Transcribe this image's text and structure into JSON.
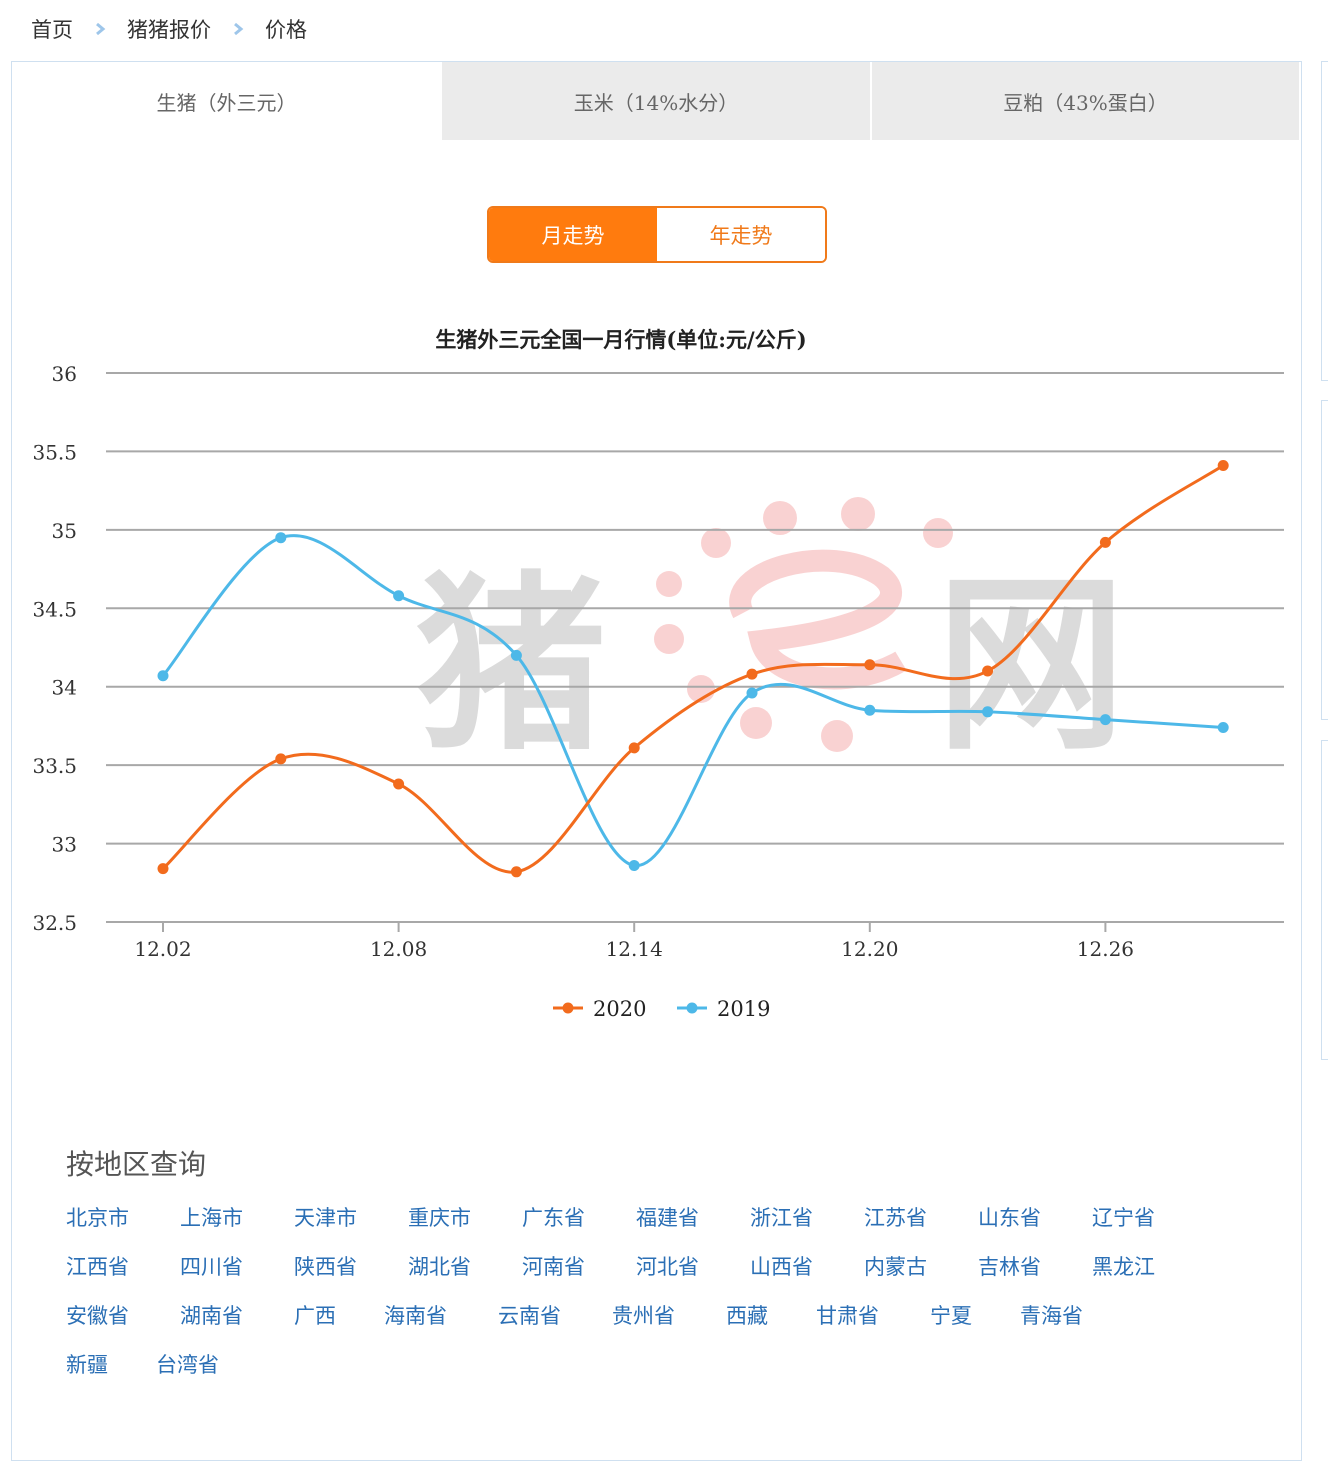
{
  "breadcrumb": {
    "home": "首页",
    "quotes": "猪猪报价",
    "price": "价格"
  },
  "tabs": [
    "生猪（外三元）",
    "玉米（14%水分）",
    "豆粕（43%蛋白）"
  ],
  "toggle": {
    "month": "月走势",
    "year": "年走势"
  },
  "watermark": {
    "text_left": "猪",
    "text_right": "网"
  },
  "chart_data": {
    "type": "line",
    "title": "生猪外三元全国一月行情(单位:元/公斤)",
    "x": [
      "12.02",
      "12.05",
      "12.08",
      "12.11",
      "12.14",
      "12.17",
      "12.20",
      "12.23",
      "12.26",
      "12.29"
    ],
    "x_tick_labels": [
      "12.02",
      "12.08",
      "12.14",
      "12.20",
      "12.26"
    ],
    "y_ticks": [
      "32.5",
      "33",
      "33.5",
      "34",
      "34.5",
      "35",
      "35.5",
      "36"
    ],
    "ylim": [
      32.5,
      36
    ],
    "grid": true,
    "legend": "bottom-center",
    "series": [
      {
        "name": "2020",
        "color": "#f26b1d",
        "values": [
          32.84,
          33.54,
          33.38,
          32.82,
          33.61,
          34.08,
          34.14,
          34.1,
          34.92,
          35.41
        ]
      },
      {
        "name": "2019",
        "color": "#4db8e8",
        "values": [
          34.07,
          34.95,
          34.58,
          34.2,
          32.86,
          33.96,
          33.85,
          33.84,
          33.79,
          33.74
        ]
      }
    ]
  },
  "region": {
    "title": "按地区查询",
    "items": [
      "北京市",
      "上海市",
      "天津市",
      "重庆市",
      "广东省",
      "福建省",
      "浙江省",
      "江苏省",
      "山东省",
      "辽宁省",
      "江西省",
      "四川省",
      "陕西省",
      "湖北省",
      "河南省",
      "河北省",
      "山西省",
      "内蒙古",
      "吉林省",
      "黑龙江",
      "安徽省",
      "湖南省",
      "广西",
      "海南省",
      "云南省",
      "贵州省",
      "西藏",
      "甘肃省",
      "宁夏",
      "青海省",
      "新疆",
      "台湾省"
    ]
  }
}
